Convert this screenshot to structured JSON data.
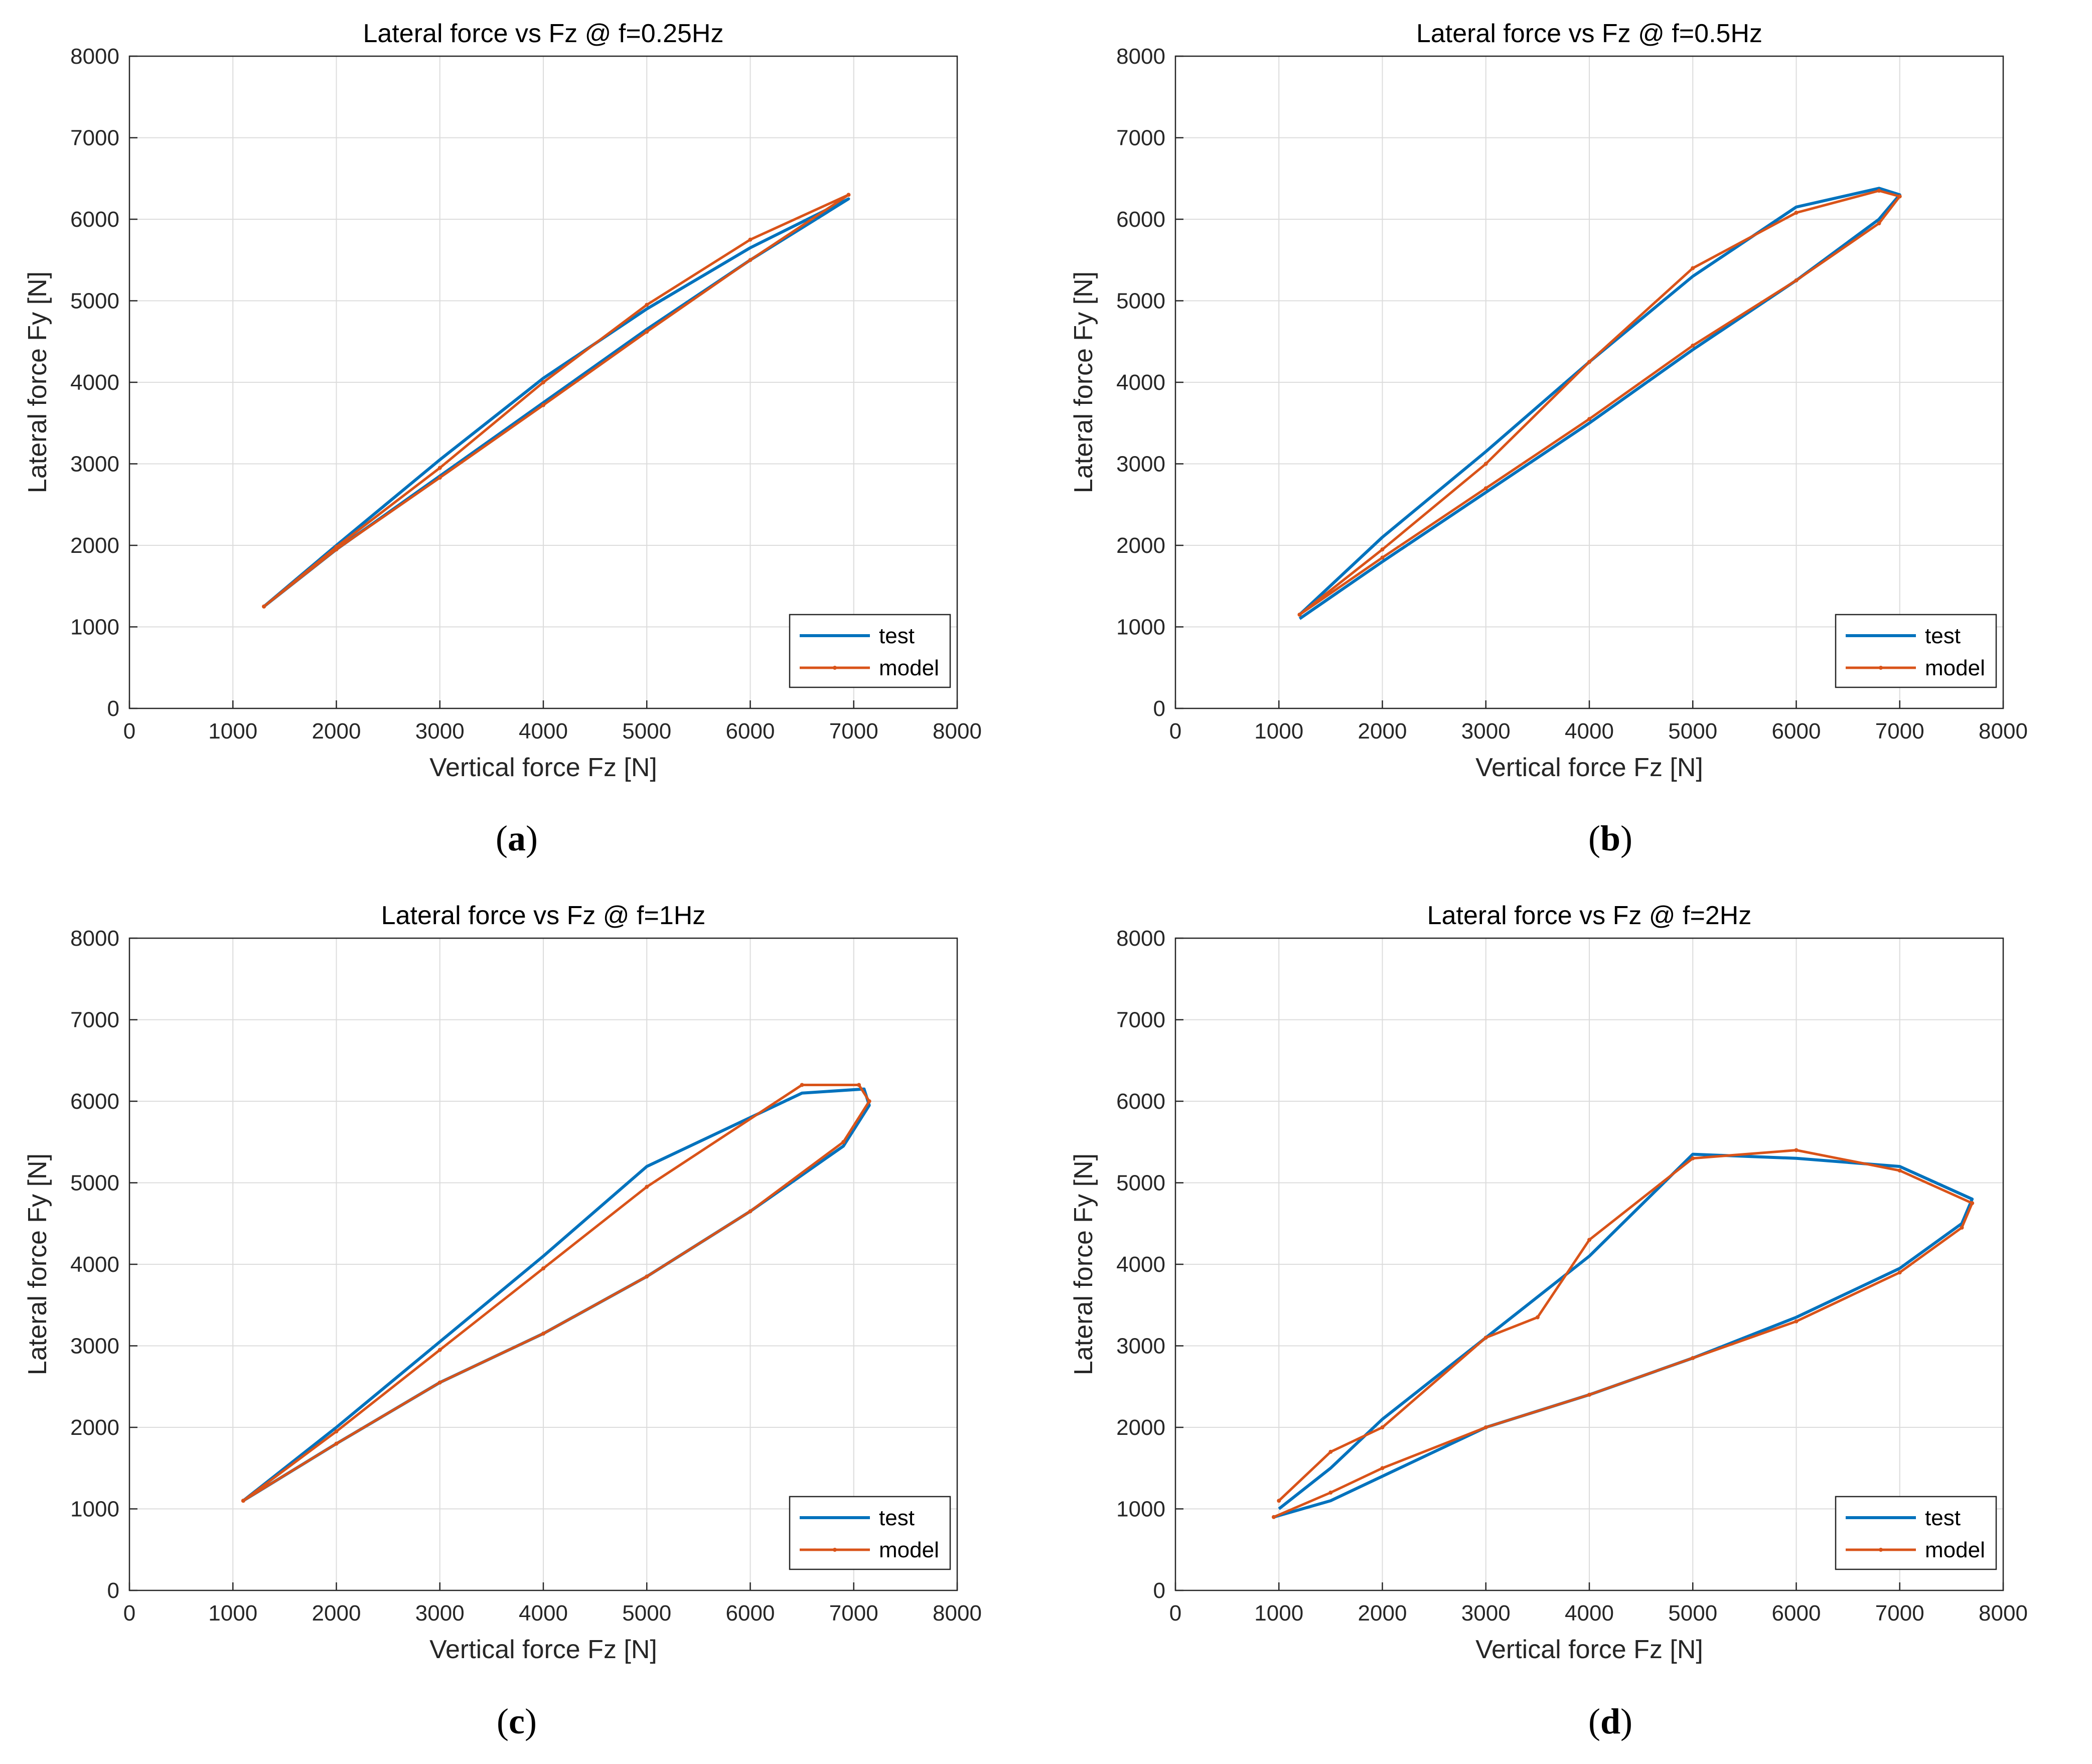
{
  "chart_data": [
    {
      "type": "line",
      "title": "Lateral force vs Fz @ f=0.25Hz",
      "xlabel": "Vertical force Fz [N]",
      "ylabel": "Lateral force Fy [N]",
      "xlim": [
        0,
        8000
      ],
      "ylim": [
        0,
        8000
      ],
      "xticks": [
        "0",
        "1000",
        "2000",
        "3000",
        "4000",
        "5000",
        "6000",
        "7000",
        "8000"
      ],
      "yticks": [
        "0",
        "1000",
        "2000",
        "3000",
        "4000",
        "5000",
        "6000",
        "7000",
        "8000"
      ],
      "grid": true,
      "legend_position": "bottom-right",
      "caption": "a",
      "series": [
        {
          "name": "test",
          "color": "#0072BD",
          "x": [
            1300,
            2000,
            3000,
            4000,
            5000,
            6000,
            6950,
            6000,
            5000,
            4000,
            3000,
            2000,
            1300
          ],
          "y": [
            1250,
            1950,
            2850,
            3750,
            4650,
            5500,
            6250,
            5650,
            4900,
            4050,
            3050,
            2000,
            1250
          ]
        },
        {
          "name": "model",
          "color": "#D95319",
          "x": [
            1300,
            2000,
            3000,
            4000,
            5000,
            6000,
            6950,
            6000,
            5000,
            4000,
            3000,
            2000,
            1300
          ],
          "y": [
            1250,
            1950,
            2830,
            3720,
            4620,
            5500,
            6300,
            5750,
            4950,
            4000,
            2950,
            1980,
            1250
          ]
        }
      ]
    },
    {
      "type": "line",
      "title": "Lateral force vs Fz @ f=0.5Hz",
      "xlabel": "Vertical force Fz [N]",
      "ylabel": "Lateral force Fy [N]",
      "xlim": [
        0,
        8000
      ],
      "ylim": [
        0,
        8000
      ],
      "xticks": [
        "0",
        "1000",
        "2000",
        "3000",
        "4000",
        "5000",
        "6000",
        "7000",
        "8000"
      ],
      "yticks": [
        "0",
        "1000",
        "2000",
        "3000",
        "4000",
        "5000",
        "6000",
        "7000",
        "8000"
      ],
      "grid": true,
      "legend_position": "bottom-right",
      "caption": "b",
      "series": [
        {
          "name": "test",
          "color": "#0072BD",
          "x": [
            1200,
            2000,
            3000,
            4000,
            5000,
            6000,
            6800,
            7000,
            6800,
            6000,
            5000,
            4000,
            3000,
            2000,
            1200
          ],
          "y": [
            1100,
            1800,
            2650,
            3500,
            4400,
            5250,
            6000,
            6300,
            6380,
            6150,
            5300,
            4250,
            3150,
            2100,
            1150
          ]
        },
        {
          "name": "model",
          "color": "#D95319",
          "x": [
            1200,
            2000,
            3000,
            4000,
            5000,
            6000,
            6800,
            7000,
            6800,
            6000,
            5000,
            4000,
            3000,
            2000,
            1200
          ],
          "y": [
            1150,
            1850,
            2700,
            3550,
            4450,
            5250,
            5950,
            6280,
            6350,
            6080,
            5400,
            4250,
            3000,
            1950,
            1150
          ]
        }
      ]
    },
    {
      "type": "line",
      "title": "Lateral force vs Fz @ f=1Hz",
      "xlabel": "Vertical force Fz [N]",
      "ylabel": "Lateral force Fy [N]",
      "xlim": [
        0,
        8000
      ],
      "ylim": [
        0,
        8000
      ],
      "xticks": [
        "0",
        "1000",
        "2000",
        "3000",
        "4000",
        "5000",
        "6000",
        "7000",
        "8000"
      ],
      "yticks": [
        "0",
        "1000",
        "2000",
        "3000",
        "4000",
        "5000",
        "6000",
        "7000",
        "8000"
      ],
      "grid": true,
      "legend_position": "bottom-right",
      "caption": "c",
      "series": [
        {
          "name": "test",
          "color": "#0072BD",
          "x": [
            1100,
            2000,
            3000,
            4000,
            5000,
            6000,
            6900,
            7150,
            7100,
            6500,
            5000,
            4000,
            3000,
            2000,
            1100
          ],
          "y": [
            1100,
            1800,
            2550,
            3150,
            3850,
            4650,
            5450,
            5950,
            6150,
            6100,
            5200,
            4100,
            3050,
            2000,
            1100
          ]
        },
        {
          "name": "model",
          "color": "#D95319",
          "x": [
            1100,
            2000,
            3000,
            4000,
            5000,
            6000,
            6900,
            7150,
            7050,
            6500,
            5000,
            4000,
            3000,
            2000,
            1100
          ],
          "y": [
            1100,
            1800,
            2550,
            3150,
            3850,
            4650,
            5500,
            6000,
            6200,
            6200,
            4950,
            3950,
            2950,
            1950,
            1100
          ]
        }
      ]
    },
    {
      "type": "line",
      "title": "Lateral force vs Fz @ f=2Hz",
      "xlabel": "Vertical force Fz [N]",
      "ylabel": "Lateral force Fy [N]",
      "xlim": [
        0,
        8000
      ],
      "ylim": [
        0,
        8000
      ],
      "xticks": [
        "0",
        "1000",
        "2000",
        "3000",
        "4000",
        "5000",
        "6000",
        "7000",
        "8000"
      ],
      "yticks": [
        "0",
        "1000",
        "2000",
        "3000",
        "4000",
        "5000",
        "6000",
        "7000",
        "8000"
      ],
      "grid": true,
      "legend_position": "bottom-right",
      "caption": "d",
      "series": [
        {
          "name": "test",
          "color": "#0072BD",
          "x": [
            950,
            1500,
            2000,
            3000,
            4000,
            5000,
            6000,
            7000,
            7600,
            7700,
            7000,
            6000,
            5000,
            4000,
            3000,
            2000,
            1500,
            1000
          ],
          "y": [
            900,
            1100,
            1400,
            2000,
            2400,
            2850,
            3350,
            3950,
            4500,
            4800,
            5200,
            5300,
            5350,
            4100,
            3100,
            2100,
            1500,
            1000
          ]
        },
        {
          "name": "model",
          "color": "#D95319",
          "x": [
            950,
            1500,
            2000,
            3000,
            4000,
            5000,
            6000,
            7000,
            7600,
            7700,
            7000,
            6000,
            5000,
            4000,
            3500,
            3000,
            2000,
            1500,
            1000
          ],
          "y": [
            900,
            1200,
            1500,
            2000,
            2400,
            2850,
            3300,
            3900,
            4450,
            4750,
            5150,
            5400,
            5300,
            4300,
            3350,
            3100,
            2000,
            1700,
            1100
          ]
        }
      ]
    }
  ]
}
